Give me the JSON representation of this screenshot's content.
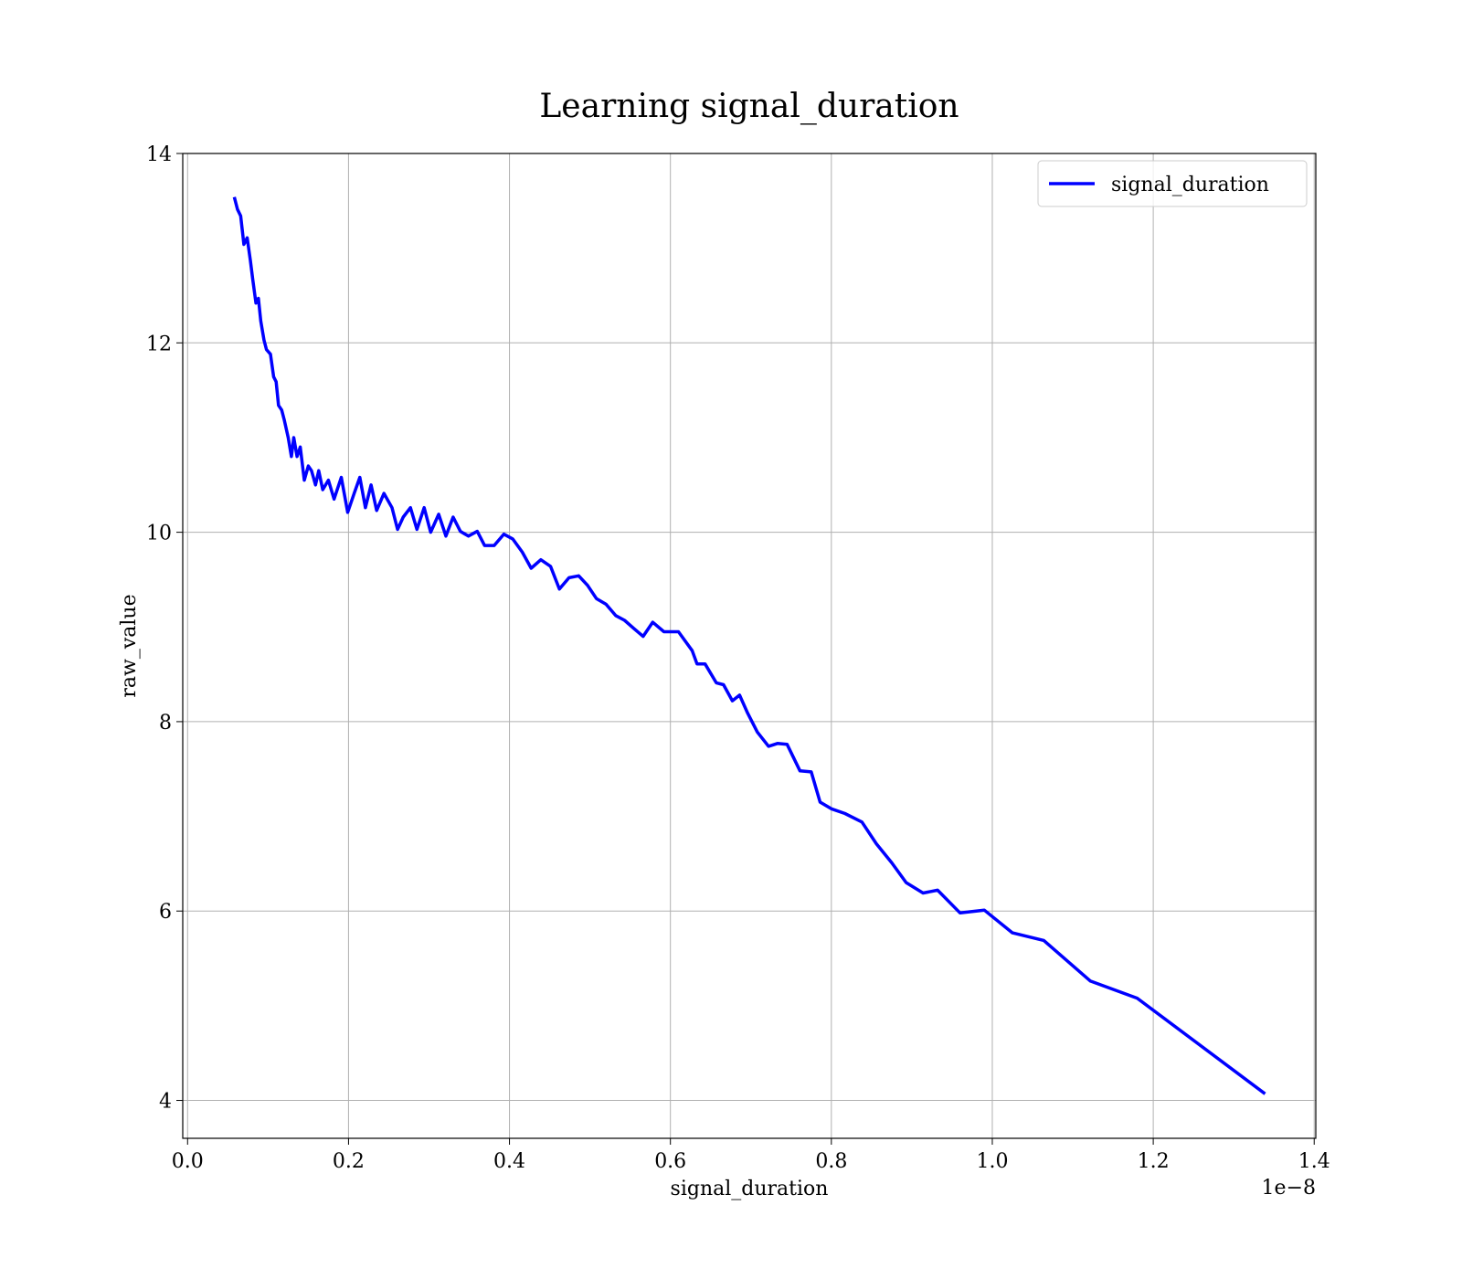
{
  "chart_data": {
    "type": "line",
    "title": "Learning signal_duration",
    "xlabel": "signal_duration",
    "ylabel": "raw_value",
    "x_offset_label": "1e−8",
    "xlim": [
      -0.006,
      1.402
    ],
    "ylim": [
      3.6,
      14.0
    ],
    "xticks": [
      {
        "value": 0,
        "label": "0.0"
      },
      {
        "value": 0.2,
        "label": "0.2"
      },
      {
        "value": 0.4,
        "label": "0.4"
      },
      {
        "value": 0.6,
        "label": "0.6"
      },
      {
        "value": 0.8,
        "label": "0.8"
      },
      {
        "value": 1,
        "label": "1.0"
      },
      {
        "value": 1.2,
        "label": "1.2"
      },
      {
        "value": 1.4,
        "label": "1.4"
      }
    ],
    "yticks": [
      4,
      6,
      8,
      10,
      12,
      14
    ],
    "grid": true,
    "legend": "upper right",
    "series": [
      {
        "name": "signal_duration",
        "color": "#0000ff",
        "x": [
          0.058,
          0.062,
          0.066,
          0.07,
          0.074,
          0.078,
          0.081,
          0.085,
          0.088,
          0.091,
          0.095,
          0.098,
          0.103,
          0.107,
          0.11,
          0.113,
          0.117,
          0.12,
          0.125,
          0.129,
          0.132,
          0.136,
          0.14,
          0.145,
          0.15,
          0.154,
          0.159,
          0.163,
          0.168,
          0.175,
          0.182,
          0.191,
          0.199,
          0.207,
          0.214,
          0.221,
          0.228,
          0.235,
          0.244,
          0.254,
          0.261,
          0.268,
          0.277,
          0.285,
          0.294,
          0.302,
          0.312,
          0.321,
          0.33,
          0.339,
          0.349,
          0.36,
          0.369,
          0.381,
          0.393,
          0.404,
          0.416,
          0.427,
          0.439,
          0.451,
          0.462,
          0.474,
          0.486,
          0.497,
          0.508,
          0.52,
          0.532,
          0.543,
          0.555,
          0.566,
          0.578,
          0.592,
          0.61,
          0.627,
          0.633,
          0.643,
          0.657,
          0.666,
          0.677,
          0.686,
          0.696,
          0.708,
          0.722,
          0.733,
          0.745,
          0.761,
          0.775,
          0.786,
          0.8,
          0.817,
          0.838,
          0.856,
          0.875,
          0.893,
          0.914,
          0.932,
          0.96,
          0.99,
          1.025,
          1.064,
          1.122,
          1.18,
          1.339
        ],
        "values": [
          13.54,
          13.41,
          13.34,
          13.04,
          13.11,
          12.87,
          12.67,
          12.42,
          12.47,
          12.23,
          12.03,
          11.93,
          11.88,
          11.64,
          11.59,
          11.34,
          11.29,
          11.19,
          11.0,
          10.8,
          11.0,
          10.8,
          10.9,
          10.55,
          10.7,
          10.65,
          10.5,
          10.65,
          10.45,
          10.55,
          10.35,
          10.58,
          10.21,
          10.41,
          10.58,
          10.26,
          10.5,
          10.23,
          10.41,
          10.26,
          10.03,
          10.16,
          10.26,
          10.03,
          10.26,
          10.0,
          10.19,
          9.96,
          10.16,
          10.01,
          9.96,
          10.01,
          9.86,
          9.86,
          9.98,
          9.93,
          9.79,
          9.62,
          9.71,
          9.64,
          9.4,
          9.52,
          9.54,
          9.44,
          9.3,
          9.24,
          9.12,
          9.07,
          8.98,
          8.9,
          9.05,
          8.95,
          8.95,
          8.75,
          8.61,
          8.61,
          8.41,
          8.39,
          8.22,
          8.28,
          8.09,
          7.89,
          7.74,
          7.77,
          7.76,
          7.48,
          7.47,
          7.15,
          7.08,
          7.03,
          6.94,
          6.71,
          6.51,
          6.3,
          6.19,
          6.22,
          5.98,
          6.01,
          5.77,
          5.69,
          5.26,
          5.08,
          4.07
        ]
      }
    ]
  }
}
